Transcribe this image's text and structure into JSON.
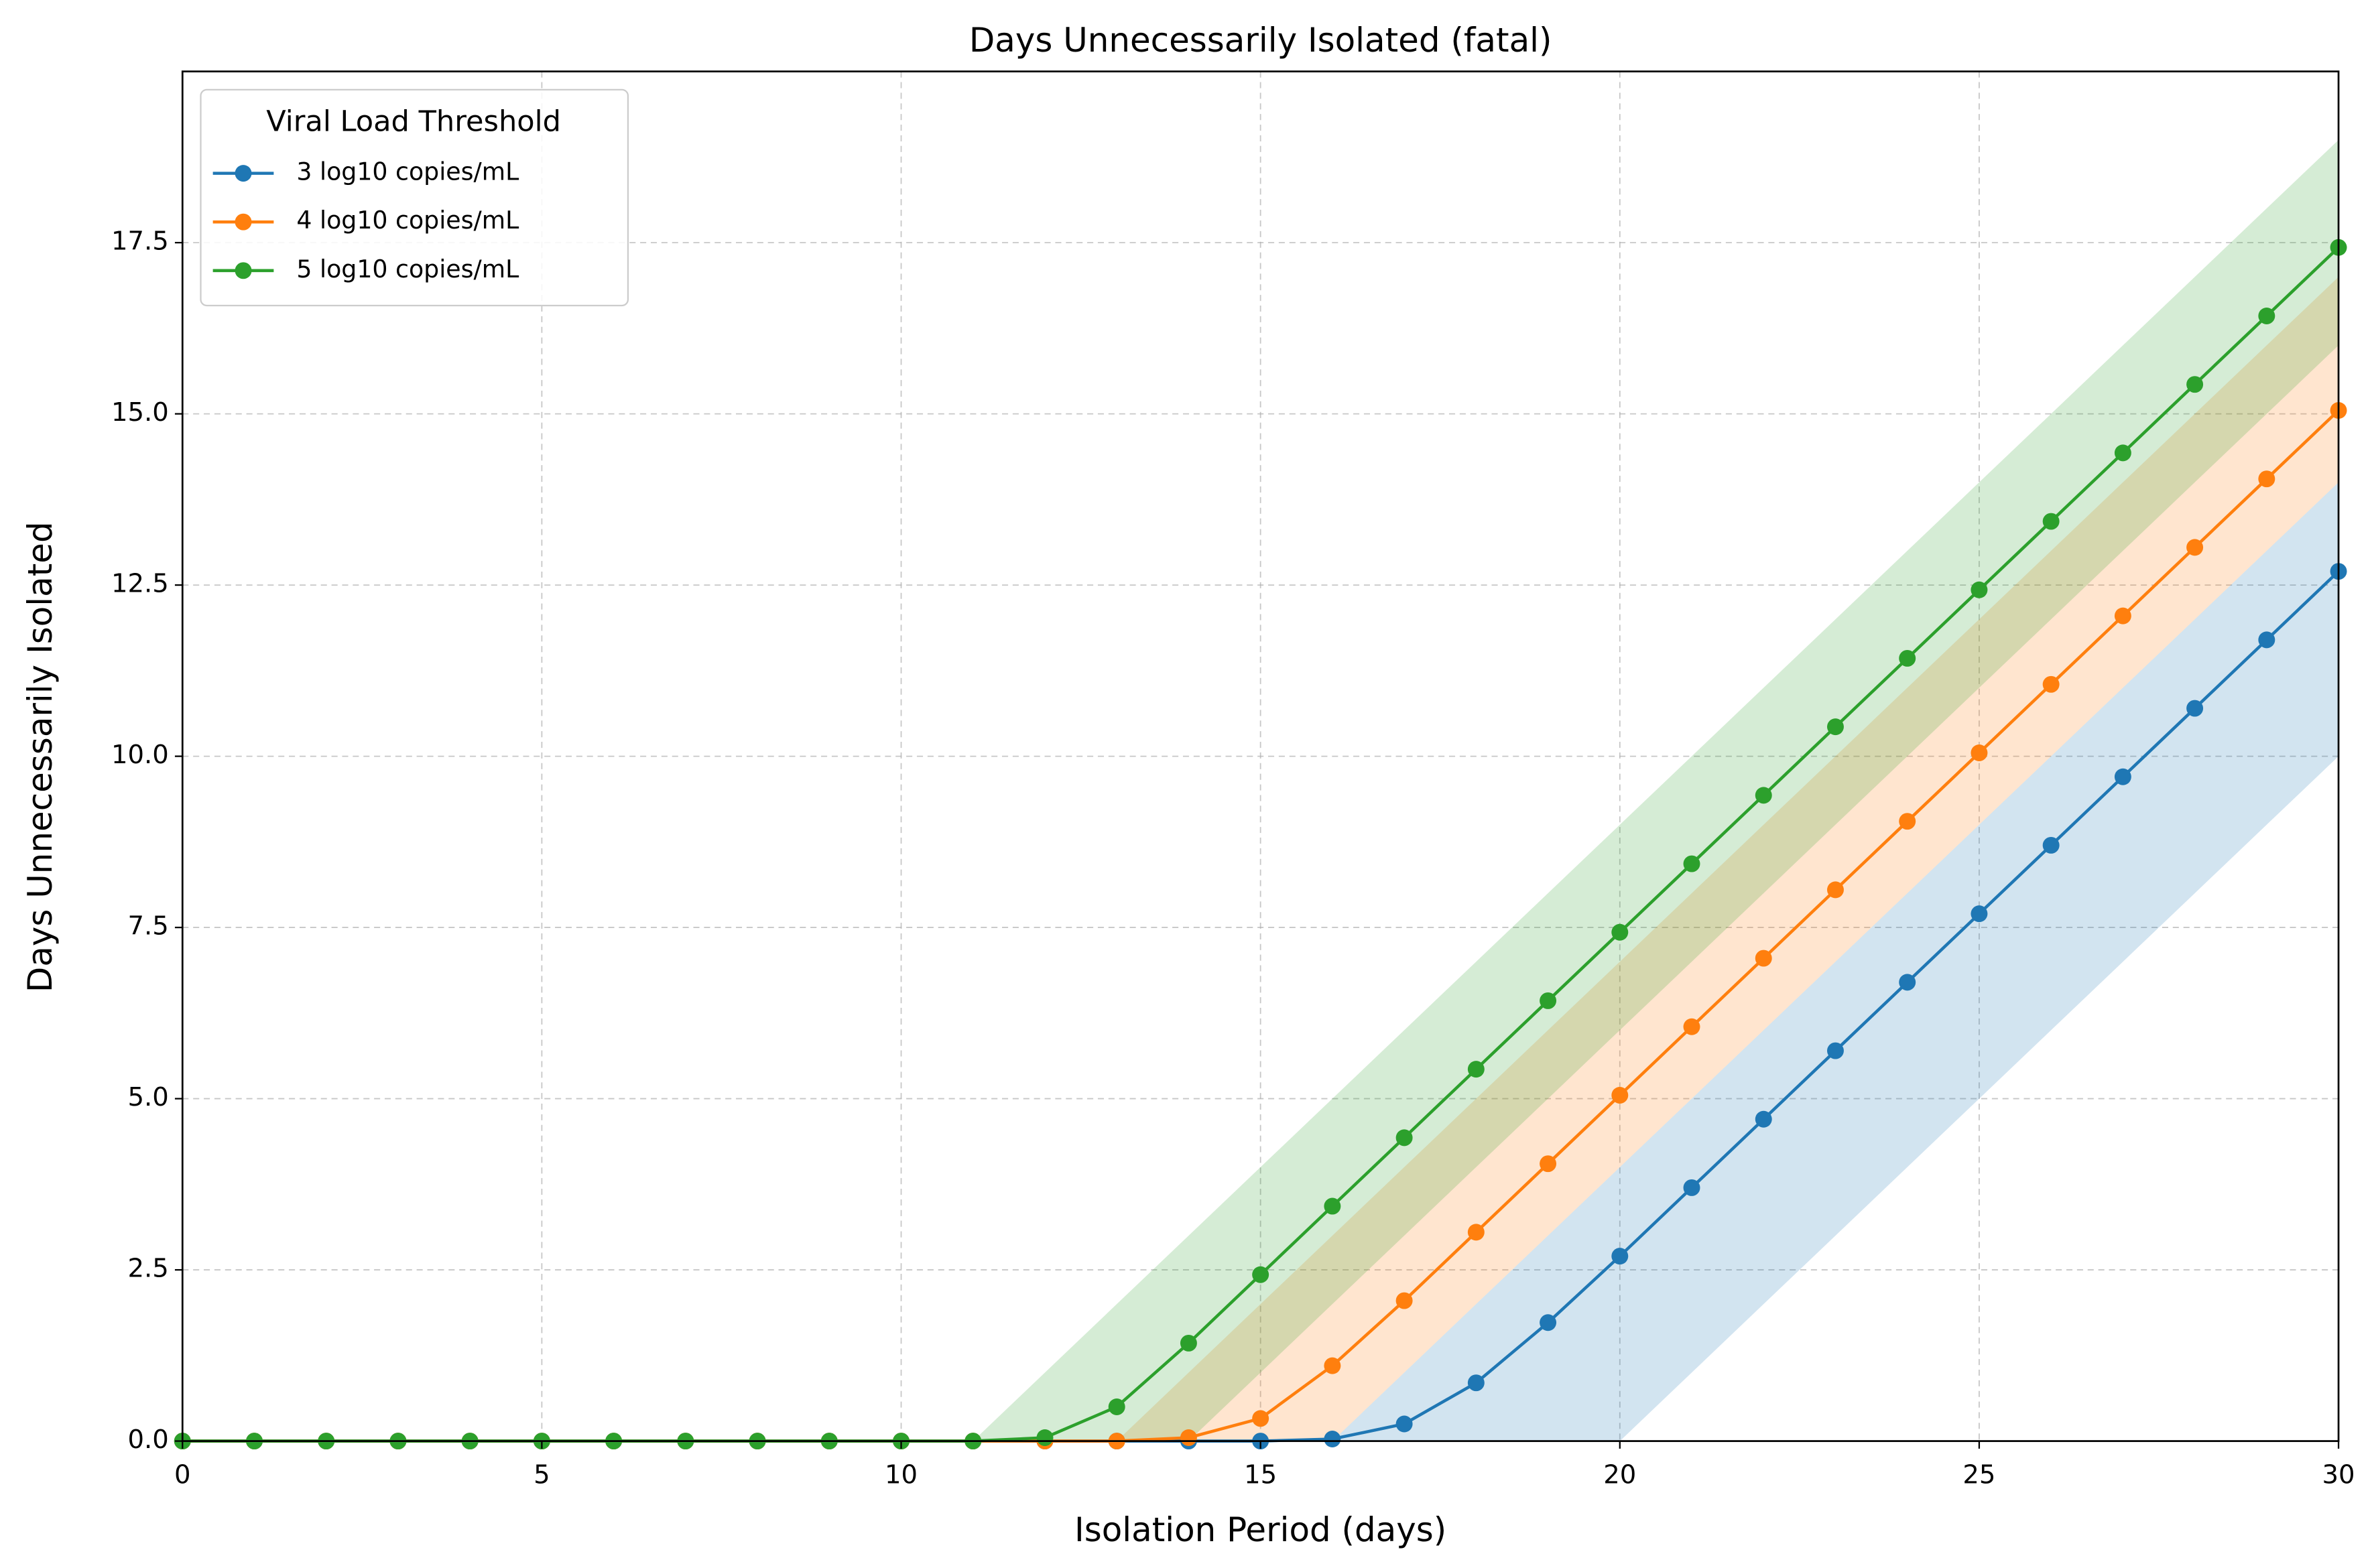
{
  "chart_data": {
    "type": "line",
    "title": "Days Unnecessarily Isolated (fatal)",
    "xlabel": "Isolation Period (days)",
    "ylabel": "Days Unnecessarily Isolated",
    "x": [
      0,
      1,
      2,
      3,
      4,
      5,
      6,
      7,
      8,
      9,
      10,
      11,
      12,
      13,
      14,
      15,
      16,
      17,
      18,
      19,
      20,
      21,
      22,
      23,
      24,
      25,
      26,
      27,
      28,
      29,
      30
    ],
    "xlim": [
      0,
      30
    ],
    "xticks": [
      0,
      5,
      10,
      15,
      20,
      25,
      30
    ],
    "ylim": [
      0,
      20
    ],
    "yticks": [
      {
        "value": 0,
        "label": "0.0"
      },
      {
        "value": 2.5,
        "label": "2.5"
      },
      {
        "value": 5,
        "label": "5.0"
      },
      {
        "value": 7.5,
        "label": "7.5"
      },
      {
        "value": 10,
        "label": "10.0"
      },
      {
        "value": 12.5,
        "label": "12.5"
      },
      {
        "value": 15,
        "label": "15.0"
      },
      {
        "value": 17.5,
        "label": "17.5"
      }
    ],
    "grid": true,
    "legend_title": "Viral Load Threshold",
    "legend_position": "upper left",
    "series": [
      {
        "name": "3 log10 copies/mL",
        "color": "#1f77b4",
        "values": [
          0,
          0,
          0,
          0,
          0,
          0,
          0,
          0,
          0,
          0,
          0,
          0,
          0,
          0,
          0,
          0,
          0.03,
          0.25,
          0.85,
          1.73,
          2.7,
          3.7,
          4.7,
          5.7,
          6.7,
          7.7,
          8.7,
          9.7,
          10.7,
          11.7,
          12.7
        ],
        "lower": [
          0,
          0,
          0,
          0,
          0,
          0,
          0,
          0,
          0,
          0,
          0,
          0,
          0,
          0,
          0,
          0,
          0,
          0,
          0,
          0,
          0,
          1,
          2,
          3,
          4,
          5,
          6,
          7,
          8,
          9,
          10
        ],
        "upper": [
          0,
          0,
          0,
          0,
          0,
          0,
          0,
          0,
          0,
          0,
          0,
          0,
          0,
          0,
          0,
          0,
          0,
          1,
          2,
          3,
          4,
          5,
          6,
          7,
          8,
          9,
          10,
          11,
          12,
          13,
          14
        ]
      },
      {
        "name": "4 log10 copies/mL",
        "color": "#ff7f0e",
        "values": [
          0,
          0,
          0,
          0,
          0,
          0,
          0,
          0,
          0,
          0,
          0,
          0,
          0,
          0,
          0.05,
          0.33,
          1.1,
          2.05,
          3.05,
          4.05,
          5.05,
          6.05,
          7.05,
          8.05,
          9.05,
          10.05,
          11.05,
          12.05,
          13.05,
          14.05,
          15.05
        ],
        "lower": [
          0,
          0,
          0,
          0,
          0,
          0,
          0,
          0,
          0,
          0,
          0,
          0,
          0,
          0,
          0,
          0,
          0,
          1,
          2,
          3,
          4,
          5,
          6,
          7,
          8,
          9,
          10,
          11,
          12,
          13,
          14
        ],
        "upper": [
          0,
          0,
          0,
          0,
          0,
          0,
          0,
          0,
          0,
          0,
          0,
          0,
          0,
          0,
          1,
          2,
          3,
          4,
          5,
          6,
          7,
          8,
          9,
          10,
          11,
          12,
          13,
          14,
          15,
          16,
          17
        ]
      },
      {
        "name": "5 log10 copies/mL",
        "color": "#2ca02c",
        "values": [
          0,
          0,
          0,
          0,
          0,
          0,
          0,
          0,
          0,
          0,
          0,
          0,
          0.05,
          0.5,
          1.43,
          2.43,
          3.43,
          4.43,
          5.43,
          6.43,
          7.43,
          8.43,
          9.43,
          10.43,
          11.43,
          12.43,
          13.43,
          14.43,
          15.43,
          16.43,
          17.43
        ],
        "lower": [
          0,
          0,
          0,
          0,
          0,
          0,
          0,
          0,
          0,
          0,
          0,
          0,
          0,
          0,
          0,
          1,
          2,
          3,
          4,
          5,
          6,
          7,
          8,
          9,
          10,
          11,
          12,
          13,
          14,
          15,
          16
        ],
        "upper": [
          0,
          0,
          0,
          0,
          0,
          0,
          0,
          0,
          0,
          0,
          0,
          0,
          1,
          2,
          3,
          4,
          5,
          6,
          7,
          8,
          9,
          10,
          11,
          12,
          13,
          14,
          15,
          16,
          17,
          18,
          19
        ]
      }
    ]
  }
}
